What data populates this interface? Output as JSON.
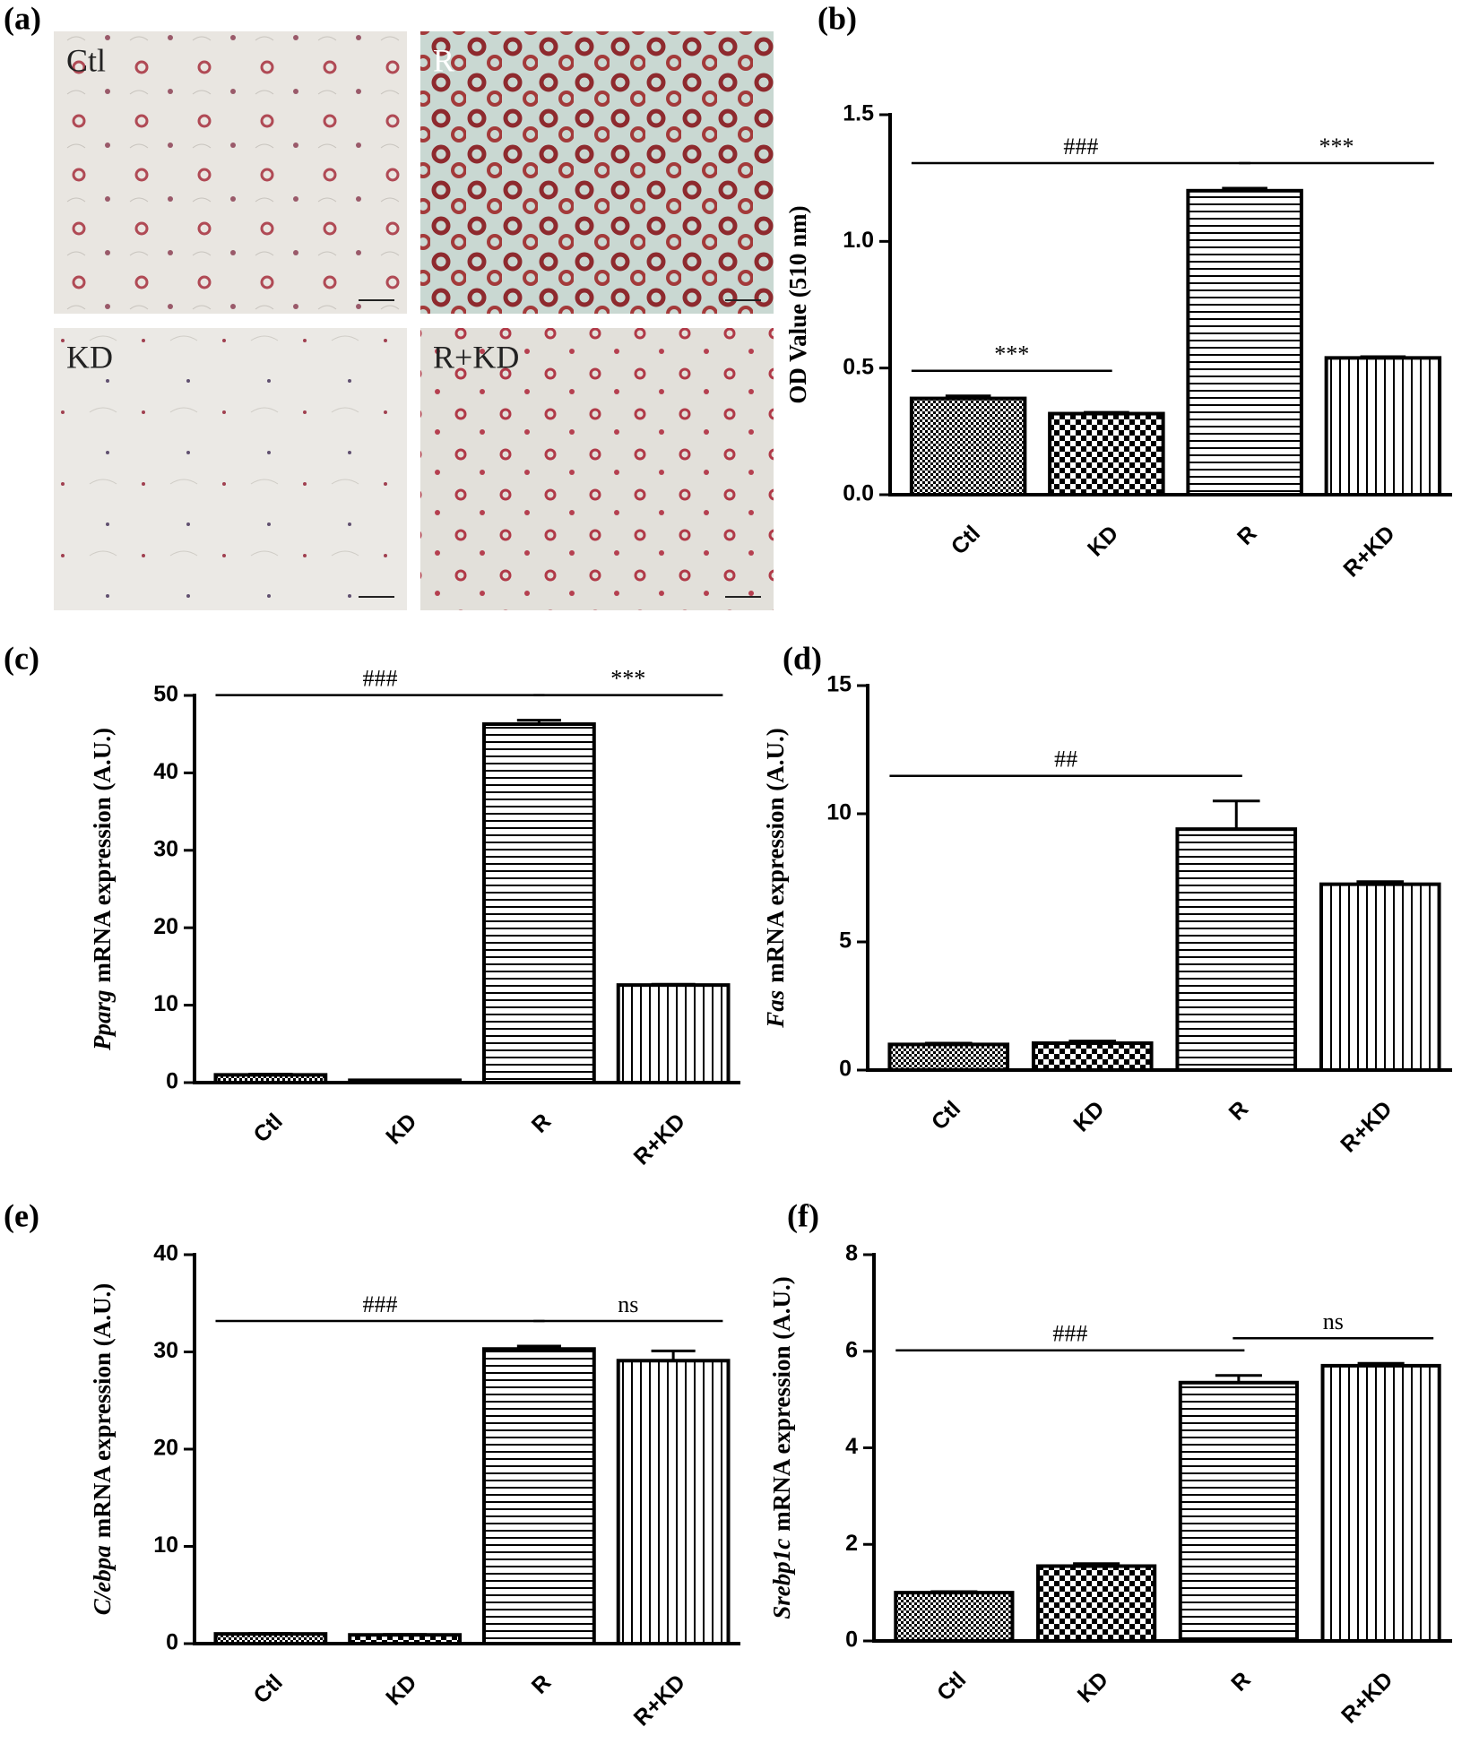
{
  "panel_a": {
    "label": "(a)",
    "images": [
      "Ctl",
      "R",
      "KD",
      "R+KD"
    ]
  },
  "chart_data": [
    {
      "type": "bar",
      "label": "(b)",
      "ylabel": "OD Value (510 nm)",
      "categories": [
        "Ctl",
        "KD",
        "R",
        "R+KD"
      ],
      "values": [
        0.38,
        0.32,
        1.2,
        0.54
      ],
      "errors": [
        0.01,
        0.005,
        0.01,
        0.005
      ],
      "patterns": [
        "fine-check",
        "check",
        "hlines",
        "vlines"
      ],
      "color": "#000000",
      "ylim": [
        0,
        1.5
      ],
      "yticks": [
        {
          "value": 0,
          "label": "0.0"
        },
        0.5,
        {
          "value": 1,
          "label": "1.0"
        },
        1.5
      ],
      "annotations": [
        {
          "text": "###",
          "between": [
            "Ctl",
            "R"
          ]
        },
        {
          "text": "***",
          "between": [
            "R",
            "R+KD"
          ]
        },
        {
          "text": "***",
          "between": [
            "Ctl",
            "KD"
          ]
        }
      ]
    },
    {
      "type": "bar",
      "label": "(c)",
      "ylabel_gene": "Pparg",
      "ylabel": "mRNA expression (A.U.)",
      "categories": [
        "Ctl",
        "KD",
        "R",
        "R+KD"
      ],
      "values": [
        1.0,
        0.3,
        46.3,
        12.6
      ],
      "errors": [
        0.1,
        0.05,
        0.5,
        0.1
      ],
      "patterns": [
        "fine-check",
        "check",
        "hlines",
        "vlines"
      ],
      "color": "#000000",
      "ylim": [
        0,
        50
      ],
      "yticks": [
        0,
        10,
        20,
        30,
        40,
        50
      ],
      "annotations": [
        {
          "text": "###",
          "between": [
            "Ctl",
            "R"
          ]
        },
        {
          "text": "***",
          "between": [
            "R",
            "R+KD"
          ]
        }
      ]
    },
    {
      "type": "bar",
      "label": "(d)",
      "ylabel_gene": "Fas",
      "ylabel": "mRNA expression (A.U.)",
      "categories": [
        "Ctl",
        "KD",
        "R",
        "R+KD"
      ],
      "values": [
        1.0,
        1.05,
        9.4,
        7.25
      ],
      "errors": [
        0.05,
        0.08,
        1.1,
        0.1
      ],
      "patterns": [
        "fine-check",
        "check",
        "hlines",
        "vlines"
      ],
      "color": "#000000",
      "ylim": [
        0,
        15
      ],
      "yticks": [
        0,
        5,
        10,
        15
      ],
      "annotations": [
        {
          "text": "##",
          "between": [
            "Ctl",
            "R"
          ]
        }
      ]
    },
    {
      "type": "bar",
      "label": "(e)",
      "ylabel_gene": "C/ebpa",
      "ylabel": "mRNA expression (A.U.)",
      "categories": [
        "Ctl",
        "KD",
        "R",
        "R+KD"
      ],
      "values": [
        1.0,
        0.9,
        30.3,
        29.1
      ],
      "errors": [
        0.05,
        0.05,
        0.3,
        1.0
      ],
      "patterns": [
        "fine-check",
        "check",
        "hlines",
        "vlines"
      ],
      "color": "#000000",
      "ylim": [
        0,
        40
      ],
      "yticks": [
        0,
        10,
        20,
        30,
        40
      ],
      "annotations": [
        {
          "text": "###",
          "between": [
            "Ctl",
            "R"
          ]
        },
        {
          "text": "ns",
          "between": [
            "R",
            "R+KD"
          ]
        }
      ]
    },
    {
      "type": "bar",
      "label": "(f)",
      "ylabel_gene": "Srebp1c",
      "ylabel": "mRNA expression (A.U.)",
      "categories": [
        "Ctl",
        "KD",
        "R",
        "R+KD"
      ],
      "values": [
        1.0,
        1.55,
        5.35,
        5.7
      ],
      "errors": [
        0.02,
        0.05,
        0.15,
        0.05
      ],
      "patterns": [
        "fine-check",
        "check",
        "hlines",
        "vlines"
      ],
      "color": "#000000",
      "ylim": [
        0,
        8
      ],
      "yticks": [
        0,
        2,
        4,
        6,
        8
      ],
      "annotations": [
        {
          "text": "###",
          "between": [
            "Ctl",
            "R"
          ]
        },
        {
          "text": "ns",
          "between": [
            "R",
            "R+KD"
          ]
        }
      ]
    }
  ]
}
